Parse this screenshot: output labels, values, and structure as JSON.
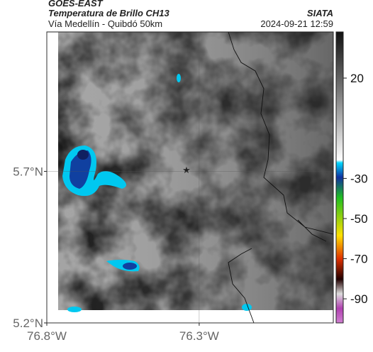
{
  "header": {
    "title": "GOES-EAST",
    "subtitle": "Temperatura de Brillo CH13",
    "route": "Vía Medellín - Quibdó 50km",
    "source": "SIATA",
    "timestamp": "2024-09-21 12:59"
  },
  "map": {
    "lat_lim": [
      5.2,
      6.16
    ],
    "lon_lim": [
      -76.8,
      -75.86
    ],
    "lat_ticks": [
      {
        "value": 5.7,
        "label": "5.7°N"
      },
      {
        "value": 5.2,
        "label": "5.2°N"
      }
    ],
    "lon_ticks": [
      {
        "value": -76.8,
        "label": "76.8°W"
      },
      {
        "value": -76.3,
        "label": "76.3°W"
      }
    ]
  },
  "colorbar": {
    "lim": [
      43,
      -102
    ],
    "ticks": [
      20,
      -30,
      -50,
      -70,
      -90
    ]
  }
}
